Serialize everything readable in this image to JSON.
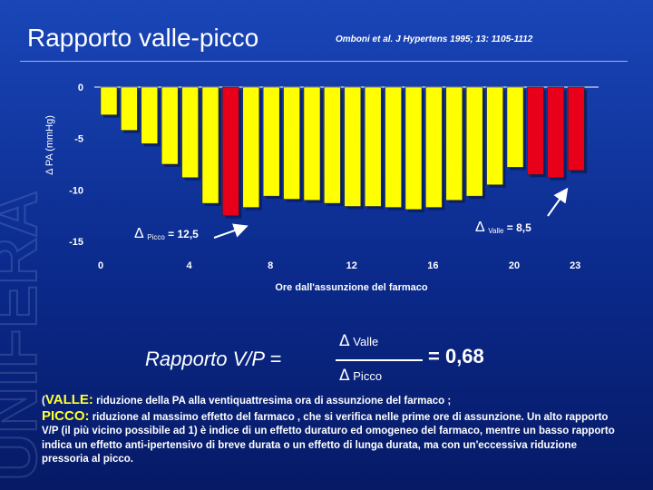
{
  "slide": {
    "title": "Rapporto valle-picco",
    "citation": "Omboni et al. J Hypertens 1995; 13: 1105-1112",
    "watermark": "UNIFERA"
  },
  "chart_data": {
    "type": "bar",
    "ylabel": "Δ PA (mmHg)",
    "xlabel": "Ore dall'assunzione del farmaco",
    "ylim": [
      -15,
      0
    ],
    "yticks": [
      0,
      -5,
      -10,
      -15
    ],
    "xticks": [
      "0",
      "4",
      "8",
      "12",
      "16",
      "20",
      "23"
    ],
    "categories": [
      "1",
      "2",
      "3",
      "4",
      "5",
      "6",
      "7",
      "8",
      "9",
      "10",
      "11",
      "12",
      "13",
      "14",
      "15",
      "16",
      "17",
      "18",
      "19",
      "20",
      "21",
      "22",
      "23",
      "24"
    ],
    "values": [
      -2.7,
      -4.2,
      -5.5,
      -7.5,
      -8.8,
      -11.3,
      -12.5,
      -11.7,
      -10.6,
      -10.9,
      -11.0,
      -11.3,
      -11.6,
      -11.6,
      -11.7,
      -11.9,
      -11.7,
      -11.0,
      -10.6,
      -9.5,
      -7.8,
      -8.5,
      -8.8,
      -8.1
    ],
    "highlight_indices": [
      6,
      21,
      22,
      23
    ],
    "bar_color": "#ffff00",
    "highlight_color": "#e8001a",
    "annotations": [
      {
        "delta": "Δ",
        "label": "Picco",
        "value": "= 12,5"
      },
      {
        "delta": "Δ",
        "label": "Valle",
        "value": "= 8,5"
      }
    ]
  },
  "formula": {
    "label": "Rapporto V/P =",
    "delta": "Δ",
    "numerator": "Valle",
    "denominator": "Picco",
    "result": "= 0,68"
  },
  "note": {
    "open": "(",
    "valle_kw": "VALLE:",
    "valle_text": " riduzione della PA alla ventiquattresima ora di assunzione del farmaco ;",
    "picco_kw": "PICCO:",
    "picco_text": " riduzione al massimo effetto del farmaco , che si verifica nelle prime ore di assunzione. Un alto rapporto V/P (il più vicino possibile ad 1) è indice di un effetto duraturo ed omogeneo del farmaco, mentre un basso rapporto indica un effetto anti-ipertensivo di breve durata o un effetto di lunga durata, ma con un'eccessiva riduzione pressoria al picco."
  }
}
